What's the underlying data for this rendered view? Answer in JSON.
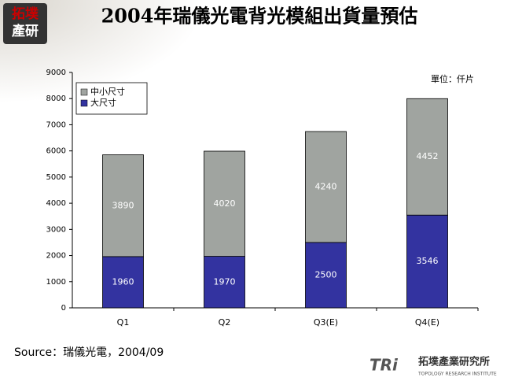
{
  "chart_data": {
    "type": "stacked_bar",
    "title": "2004年瑞儀光電背光模組出貨量預估",
    "unit_label": "單位：仟片",
    "source": "Source：瑞儀光電，2004/09",
    "categories": [
      "Q1",
      "Q2",
      "Q3(E)",
      "Q4(E)"
    ],
    "series": [
      {
        "name": "大尺寸",
        "color": "#3333a0",
        "values": [
          1960,
          1970,
          2500,
          3546
        ]
      },
      {
        "name": "中小尺寸",
        "color": "#a0a4a0",
        "values": [
          3890,
          4020,
          4240,
          4452
        ]
      }
    ],
    "ylim": [
      0,
      9000
    ],
    "yticks": [
      0,
      1000,
      2000,
      3000,
      4000,
      5000,
      6000,
      7000,
      8000,
      9000
    ],
    "legend": "top-left",
    "data_labels": true
  },
  "branding": {
    "corner_logo_top": "拓墣",
    "corner_logo_bottom": "產研",
    "mark": "TRi",
    "institute": "拓墣產業研究所",
    "institute_en": "TOPOLOGY RESEARCH INSTITUTE"
  }
}
